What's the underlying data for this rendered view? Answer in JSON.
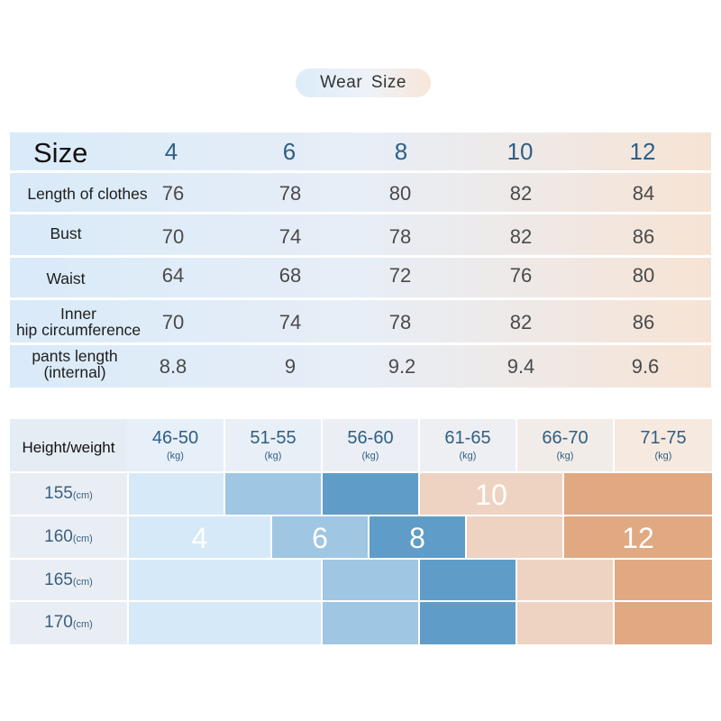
{
  "title": "Wear  Size",
  "size_table": {
    "header_label": "Size",
    "sizes": [
      "4",
      "6",
      "8",
      "10",
      "12"
    ],
    "rows": [
      {
        "label_lines": [
          "Length of clothes"
        ],
        "values": [
          "76",
          "78",
          "80",
          "82",
          "84"
        ]
      },
      {
        "label_lines": [
          "Bust"
        ],
        "values": [
          "70",
          "74",
          "78",
          "82",
          "86"
        ]
      },
      {
        "label_lines": [
          "Waist"
        ],
        "values": [
          "64",
          "68",
          "72",
          "76",
          "80"
        ]
      },
      {
        "label_lines": [
          "Inner",
          "hip circumference"
        ],
        "values": [
          "70",
          "74",
          "78",
          "82",
          "86"
        ]
      },
      {
        "label_lines": [
          "pants length",
          "(internal)"
        ],
        "values": [
          "8.8",
          "9",
          "9.2",
          "9.4",
          "9.6"
        ]
      }
    ]
  },
  "height_weight": {
    "header_label": "Height/weight",
    "weight_ranges": [
      "46-50",
      "51-55",
      "56-60",
      "61-65",
      "66-70",
      "71-75"
    ],
    "weight_unit": "(kg)",
    "height_unit": "(cm)",
    "heights": [
      "155",
      "160",
      "165",
      "170"
    ],
    "size_labels": [
      "10",
      "4",
      "6",
      "8",
      "12"
    ],
    "colors": {
      "size4": "#d6e9f8",
      "size6": "#9fc6e3",
      "size8": "#5f9dc8",
      "size10": "#eed3c2",
      "size12": "#e0a982"
    }
  }
}
